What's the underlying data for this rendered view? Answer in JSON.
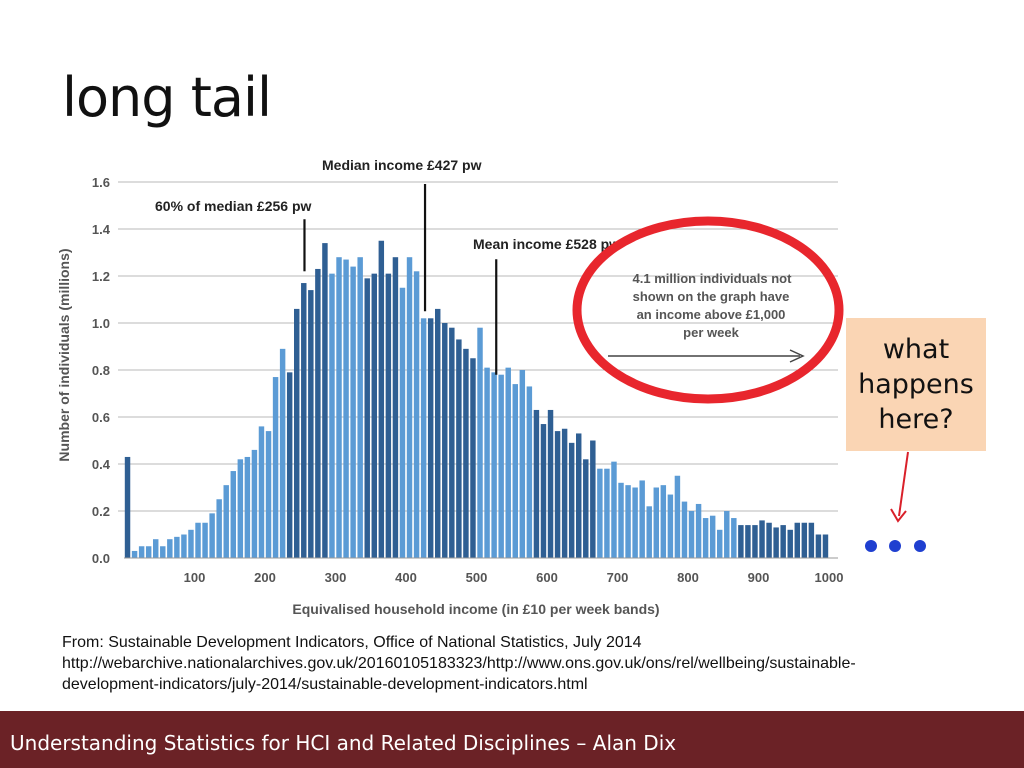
{
  "slide": {
    "title": "long tail",
    "callout_lines": [
      "what",
      "happens",
      "here?"
    ],
    "dots": "• • •",
    "source_lines": [
      "From: Sustainable Development Indicators, Office of National Statistics, July 2014",
      "http://webarchive.nationalarchives.gov.uk/20160105183323/http://www.ons.gov.uk/ons/rel/wellbeing/sustainable-",
      "development-indicators/july-2014/sustainable-development-indicators.html"
    ],
    "footer": "Understanding Statistics for HCI and Related Disciplines  –  Alan Dix"
  },
  "colors": {
    "light_bar": "#5b9bd5",
    "dark_bar": "#2f5f93",
    "ellipse": "#e8262d",
    "arrow": "#d9202a",
    "dots": "#1f3fd0",
    "callout_bg": "#fad5b4",
    "footer_bg": "#6b2226"
  },
  "chart_data": {
    "type": "bar",
    "xlabel": "Equivalised household income (in £10 per week bands)",
    "ylabel": "Number of individuals (millions)",
    "xlim": [
      0,
      1000
    ],
    "ylim": [
      0,
      1.6
    ],
    "xticks": [
      100,
      200,
      300,
      400,
      500,
      600,
      700,
      800,
      900,
      1000
    ],
    "yticks": [
      "0.0",
      "0.2",
      "0.4",
      "0.6",
      "0.8",
      "1.0",
      "1.2",
      "1.4",
      "1.6"
    ],
    "grid": true,
    "bin_width": 10,
    "bins_start": [
      0,
      10,
      20,
      30,
      40,
      50,
      60,
      70,
      80,
      90,
      100,
      110,
      120,
      130,
      140,
      150,
      160,
      170,
      180,
      190,
      200,
      210,
      220,
      230,
      240,
      250,
      260,
      270,
      280,
      290,
      300,
      310,
      320,
      330,
      340,
      350,
      360,
      370,
      380,
      390,
      400,
      410,
      420,
      430,
      440,
      450,
      460,
      470,
      480,
      490,
      500,
      510,
      520,
      530,
      540,
      550,
      560,
      570,
      580,
      590,
      600,
      610,
      620,
      630,
      640,
      650,
      660,
      670,
      680,
      690,
      700,
      710,
      720,
      730,
      740,
      750,
      760,
      770,
      780,
      790,
      800,
      810,
      820,
      830,
      840,
      850,
      860,
      870,
      880,
      890,
      900,
      910,
      920,
      930,
      940,
      950,
      960,
      970,
      980,
      990
    ],
    "values": [
      0.43,
      0.03,
      0.05,
      0.05,
      0.08,
      0.05,
      0.08,
      0.09,
      0.1,
      0.12,
      0.15,
      0.15,
      0.19,
      0.25,
      0.31,
      0.37,
      0.42,
      0.43,
      0.46,
      0.56,
      0.54,
      0.77,
      0.89,
      0.79,
      1.06,
      1.17,
      1.14,
      1.23,
      1.34,
      1.21,
      1.28,
      1.27,
      1.24,
      1.28,
      1.19,
      1.21,
      1.35,
      1.21,
      1.28,
      1.15,
      1.28,
      1.22,
      1.02,
      1.02,
      1.06,
      1.0,
      0.98,
      0.93,
      0.89,
      0.85,
      0.98,
      0.81,
      0.79,
      0.78,
      0.81,
      0.74,
      0.8,
      0.73,
      0.63,
      0.57,
      0.63,
      0.54,
      0.55,
      0.49,
      0.53,
      0.42,
      0.5,
      0.38,
      0.38,
      0.41,
      0.32,
      0.31,
      0.3,
      0.33,
      0.22,
      0.3,
      0.31,
      0.27,
      0.35,
      0.24,
      0.2,
      0.23,
      0.17,
      0.18,
      0.12,
      0.2,
      0.17,
      0.14,
      0.14,
      0.14,
      0.16,
      0.15,
      0.13,
      0.14,
      0.12,
      0.15,
      0.15,
      0.15,
      0.1,
      0.1
    ],
    "bar_shade": [
      "dark",
      "light",
      "light",
      "light",
      "light",
      "light",
      "light",
      "light",
      "light",
      "light",
      "light",
      "light",
      "light",
      "light",
      "light",
      "light",
      "light",
      "light",
      "light",
      "light",
      "light",
      "light",
      "light",
      "dark",
      "dark",
      "dark",
      "dark",
      "dark",
      "dark",
      "light",
      "light",
      "light",
      "light",
      "light",
      "dark",
      "dark",
      "dark",
      "dark",
      "dark",
      "light",
      "light",
      "light",
      "light",
      "dark",
      "dark",
      "dark",
      "dark",
      "dark",
      "dark",
      "dark",
      "light",
      "light",
      "light",
      "light",
      "light",
      "light",
      "light",
      "light",
      "dark",
      "dark",
      "dark",
      "dark",
      "dark",
      "dark",
      "dark",
      "dark",
      "dark",
      "light",
      "light",
      "light",
      "light",
      "light",
      "light",
      "light",
      "light",
      "light",
      "light",
      "light",
      "light",
      "light",
      "light",
      "light",
      "light",
      "light",
      "light",
      "light",
      "light",
      "dark",
      "dark",
      "dark",
      "dark",
      "dark",
      "dark",
      "dark",
      "dark",
      "dark",
      "dark",
      "dark",
      "dark",
      "dark"
    ],
    "annotations": [
      {
        "text": "Median income £427 pw",
        "x": 427,
        "line_from": 1.6,
        "line_to": 1.05
      },
      {
        "text": "60% of median £256 pw",
        "x": 256,
        "line_from": 1.45,
        "line_to": 1.22
      },
      {
        "text": "Mean income £528 pw",
        "x": 528,
        "line_from": 1.28,
        "line_to": 0.78
      }
    ],
    "note_lines": [
      "4.1 million individuals not",
      "shown  on  the graph have",
      "an income above  £1,000",
      "per week"
    ]
  }
}
